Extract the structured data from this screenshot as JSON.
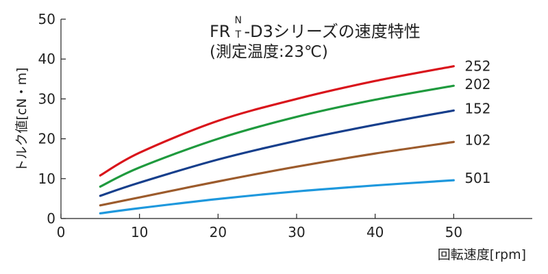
{
  "chart_data": {
    "type": "line",
    "title_main": "FR",
    "title_sup": "N",
    "title_sub": "T",
    "title_rest": "-D3シリーズの速度特性",
    "subtitle": "(測定温度:23℃)",
    "xlabel": "回転速度[rpm]",
    "ylabel": "トルク値[cN・m]",
    "xlim": [
      0,
      60
    ],
    "ylim": [
      0,
      50
    ],
    "xticks": [
      0,
      10,
      20,
      30,
      40,
      50
    ],
    "yticks": [
      0,
      10,
      20,
      30,
      40,
      50
    ],
    "grid": false,
    "series": [
      {
        "name": "252",
        "color": "#d9141b",
        "x": [
          5,
          10,
          20,
          30,
          40,
          50
        ],
        "y": [
          10.8,
          16.5,
          24.5,
          30.0,
          34.5,
          38.2
        ]
      },
      {
        "name": "202",
        "color": "#1f9a3e",
        "x": [
          5,
          10,
          20,
          30,
          40,
          50
        ],
        "y": [
          8.0,
          12.8,
          20.0,
          25.5,
          29.8,
          33.3
        ]
      },
      {
        "name": "152",
        "color": "#163f8c",
        "x": [
          5,
          10,
          20,
          30,
          40,
          50
        ],
        "y": [
          5.7,
          9.0,
          14.8,
          19.5,
          23.5,
          27.1
        ]
      },
      {
        "name": "102",
        "color": "#9c5b2c",
        "x": [
          5,
          10,
          20,
          30,
          40,
          50
        ],
        "y": [
          3.3,
          5.3,
          9.3,
          13.0,
          16.3,
          19.2
        ]
      },
      {
        "name": "501",
        "color": "#1e98dd",
        "x": [
          5,
          10,
          20,
          30,
          40,
          50
        ],
        "y": [
          1.3,
          2.6,
          4.9,
          6.8,
          8.3,
          9.6
        ]
      }
    ]
  }
}
